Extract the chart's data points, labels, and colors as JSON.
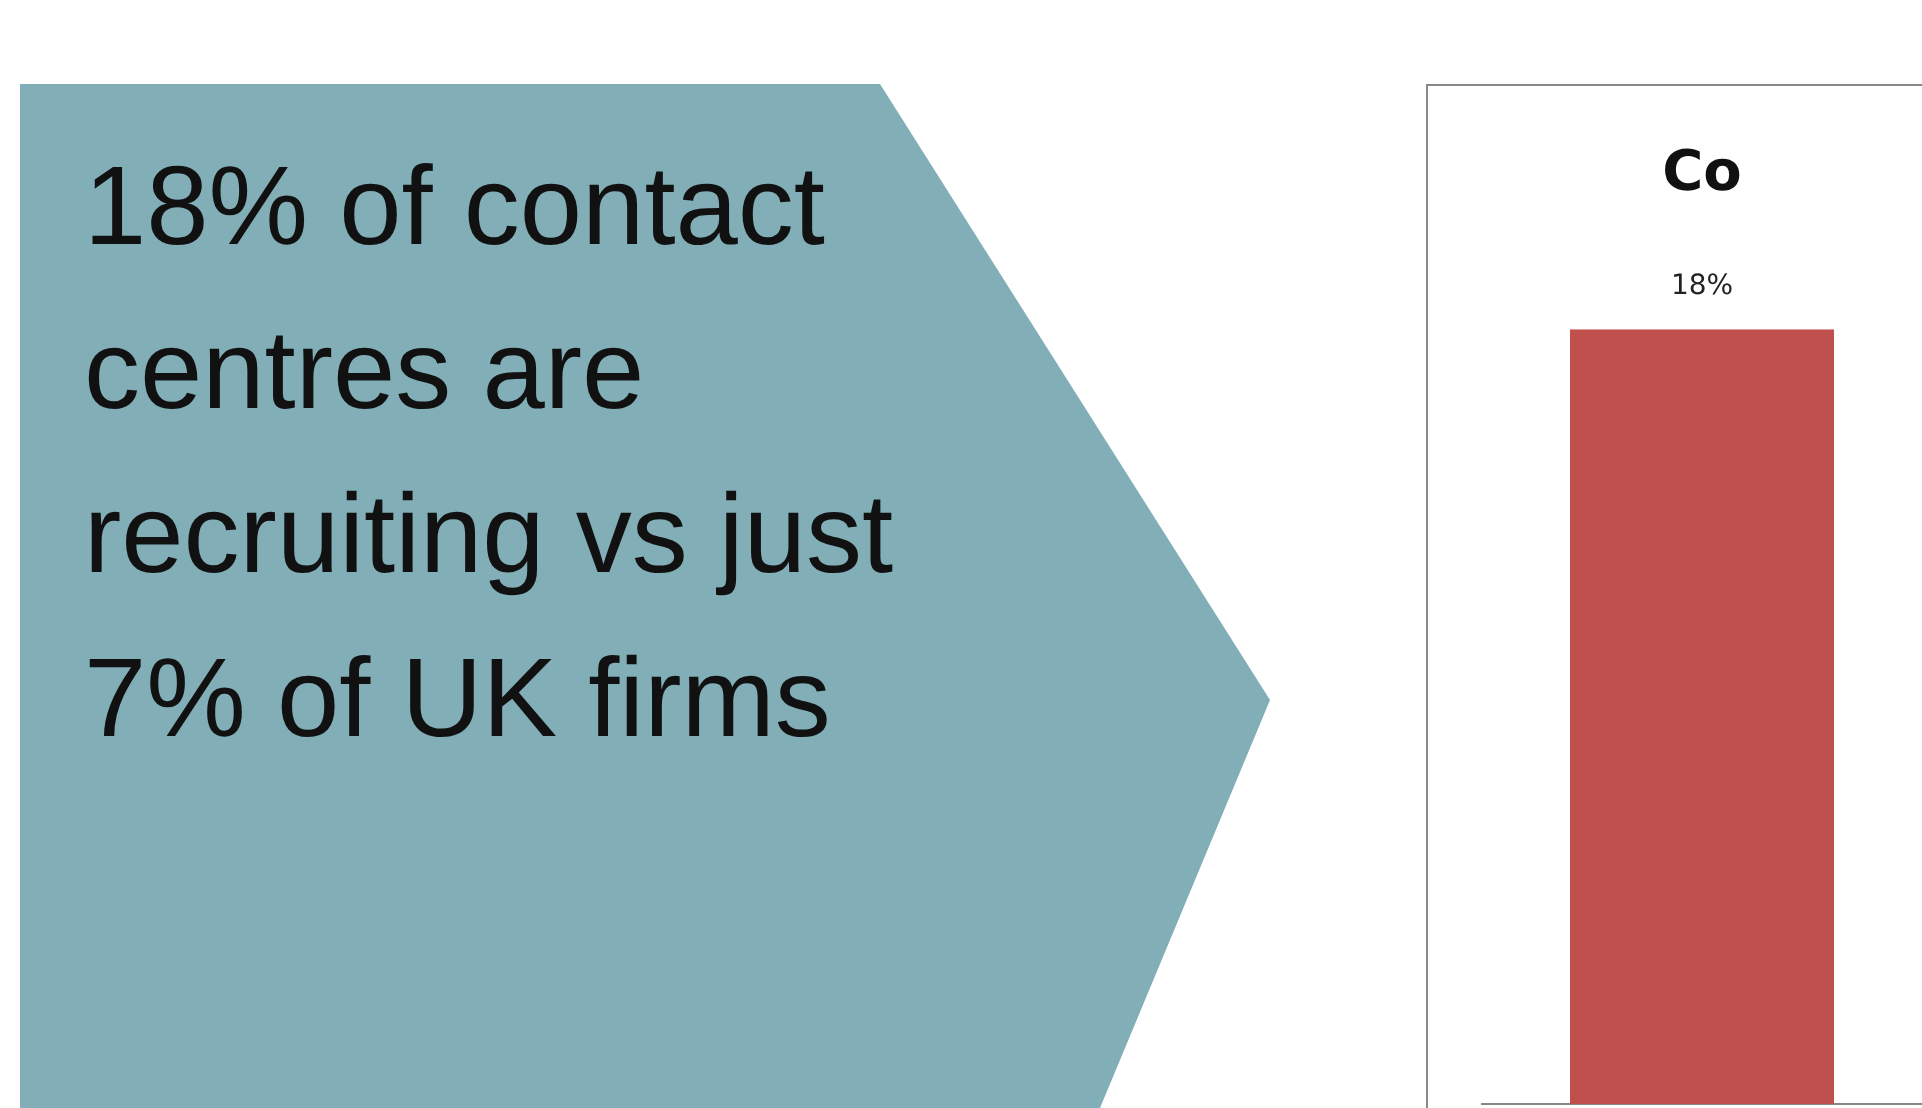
{
  "chart_data": [
    {
      "type": "other",
      "annotations": [
        "18% of contact centres are recruiting vs just 7% of UK firms"
      ]
    },
    {
      "type": "bar",
      "title": "Co",
      "categories": [
        null
      ],
      "values": [
        18
      ],
      "color": "#c0504d",
      "value_labels": [
        "18%"
      ],
      "grid": false,
      "legend": false
    }
  ]
}
